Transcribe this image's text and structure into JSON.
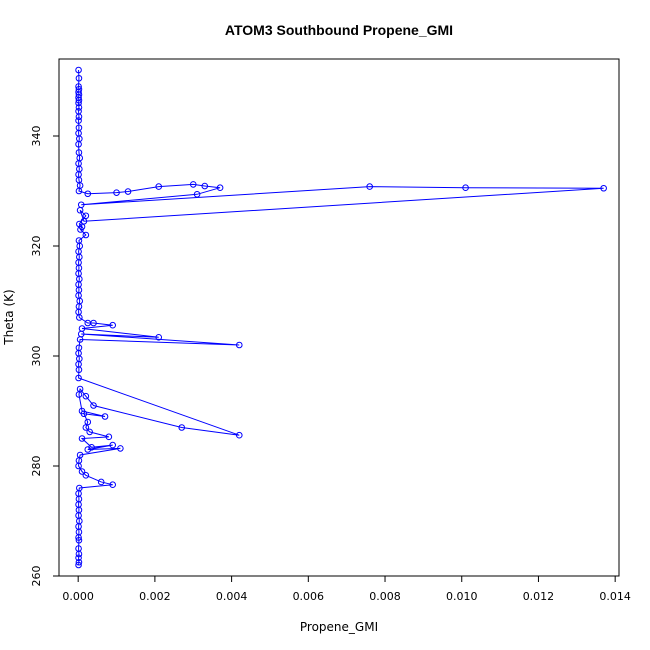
{
  "chart_data": {
    "type": "line",
    "title": "ATOM3 Southbound Propene_GMI",
    "xlabel": "Propene_GMI",
    "ylabel": "Theta (K)",
    "xlim": [
      -0.0005,
      0.0141
    ],
    "ylim": [
      260,
      354
    ],
    "xticks": [
      0.0,
      0.002,
      0.004,
      0.006,
      0.008,
      0.01,
      0.012,
      0.014
    ],
    "xtick_labels": [
      "0.000",
      "0.002",
      "0.004",
      "0.006",
      "0.008",
      "0.010",
      "0.012",
      "0.014"
    ],
    "yticks": [
      260,
      280,
      300,
      320,
      340
    ],
    "ytick_labels": [
      "260",
      "280",
      "300",
      "320",
      "340"
    ],
    "grid": false,
    "legend": "none",
    "series": [
      {
        "color": "#0000ff",
        "marker": "open-circle",
        "points": [
          [
            1e-05,
            352.0
          ],
          [
            2e-05,
            350.5
          ],
          [
            1e-05,
            349.0
          ],
          [
            2e-05,
            348.5
          ],
          [
            1e-05,
            348.0
          ],
          [
            2e-05,
            347.5
          ],
          [
            1e-05,
            347.0
          ],
          [
            2e-05,
            346.5
          ],
          [
            1e-05,
            346.0
          ],
          [
            2e-05,
            345.2
          ],
          [
            1e-05,
            344.5
          ],
          [
            2e-05,
            343.5
          ],
          [
            1e-05,
            342.8
          ],
          [
            2e-05,
            341.5
          ],
          [
            1e-05,
            340.5
          ],
          [
            3e-05,
            339.5
          ],
          [
            1e-05,
            338.5
          ],
          [
            2e-05,
            337.0
          ],
          [
            4e-05,
            336.0
          ],
          [
            1e-05,
            335.0
          ],
          [
            3e-05,
            334.0
          ],
          [
            1e-05,
            333.0
          ],
          [
            2e-05,
            332.0
          ],
          [
            5e-05,
            331.0
          ],
          [
            2e-05,
            330.0
          ],
          [
            0.00025,
            329.5
          ],
          [
            0.001,
            329.7
          ],
          [
            0.0013,
            329.9
          ],
          [
            0.0021,
            330.8
          ],
          [
            0.003,
            331.2
          ],
          [
            0.0033,
            330.9
          ],
          [
            0.0037,
            330.6
          ],
          [
            0.0031,
            329.4
          ],
          [
            8e-05,
            327.5
          ],
          [
            0.0076,
            330.8
          ],
          [
            0.0101,
            330.6
          ],
          [
            0.0137,
            330.5
          ],
          [
            0.00015,
            324.5
          ],
          [
            5e-05,
            326.5
          ],
          [
            0.0002,
            325.5
          ],
          [
            3e-05,
            324.0
          ],
          [
            0.0001,
            323.5
          ],
          [
            6e-05,
            323.0
          ],
          [
            0.0002,
            322.0
          ],
          [
            2e-05,
            321.0
          ],
          [
            4e-05,
            320.0
          ],
          [
            1e-05,
            319.0
          ],
          [
            3e-05,
            318.0
          ],
          [
            1e-05,
            317.0
          ],
          [
            2e-05,
            316.0
          ],
          [
            1e-05,
            315.0
          ],
          [
            3e-05,
            314.0
          ],
          [
            1e-05,
            313.0
          ],
          [
            2e-05,
            312.0
          ],
          [
            1e-05,
            311.0
          ],
          [
            4e-05,
            310.0
          ],
          [
            2e-05,
            309.0
          ],
          [
            1e-05,
            308.0
          ],
          [
            3e-05,
            307.0
          ],
          [
            0.00025,
            306.0
          ],
          [
            0.0004,
            306.0
          ],
          [
            0.0009,
            305.6
          ],
          [
            0.0001,
            305.0
          ],
          [
            0.0021,
            303.4
          ],
          [
            8e-05,
            304.0
          ],
          [
            0.0042,
            302.0
          ],
          [
            5e-05,
            303.0
          ],
          [
            2e-05,
            301.5
          ],
          [
            1e-05,
            300.5
          ],
          [
            3e-05,
            299.5
          ],
          [
            1e-05,
            298.5
          ],
          [
            2e-05,
            297.5
          ],
          [
            1e-05,
            296.0
          ],
          [
            0.0042,
            285.6
          ],
          [
            0.0027,
            287.0
          ],
          [
            0.0004,
            291.0
          ],
          [
            0.0002,
            292.7
          ],
          [
            5e-05,
            294.0
          ],
          [
            2e-05,
            293.0
          ],
          [
            0.0001,
            290.0
          ],
          [
            0.0007,
            289.0
          ],
          [
            0.00015,
            289.5
          ],
          [
            0.00025,
            288.0
          ],
          [
            0.0002,
            287.0
          ],
          [
            0.0003,
            286.2
          ],
          [
            0.0008,
            285.3
          ],
          [
            0.0001,
            285.0
          ],
          [
            0.00035,
            283.4
          ],
          [
            0.0009,
            283.8
          ],
          [
            0.00025,
            283.0
          ],
          [
            0.0011,
            283.2
          ],
          [
            5e-05,
            282.0
          ],
          [
            2e-05,
            281.0
          ],
          [
            1e-05,
            280.0
          ],
          [
            0.0001,
            279.0
          ],
          [
            0.0002,
            278.3
          ],
          [
            0.0006,
            277.1
          ],
          [
            0.0009,
            276.6
          ],
          [
            3e-05,
            276.0
          ],
          [
            1e-05,
            275.0
          ],
          [
            2e-05,
            274.0
          ],
          [
            1e-05,
            273.0
          ],
          [
            2e-05,
            272.0
          ],
          [
            1e-05,
            271.0
          ],
          [
            3e-05,
            270.0
          ],
          [
            1e-05,
            269.0
          ],
          [
            2e-05,
            268.0
          ],
          [
            1e-05,
            267.0
          ],
          [
            2e-05,
            266.5
          ],
          [
            1e-05,
            265.0
          ],
          [
            2e-05,
            264.0
          ],
          [
            1e-05,
            263.3
          ],
          [
            2e-05,
            262.5
          ],
          [
            1e-05,
            262.0
          ]
        ]
      }
    ]
  }
}
